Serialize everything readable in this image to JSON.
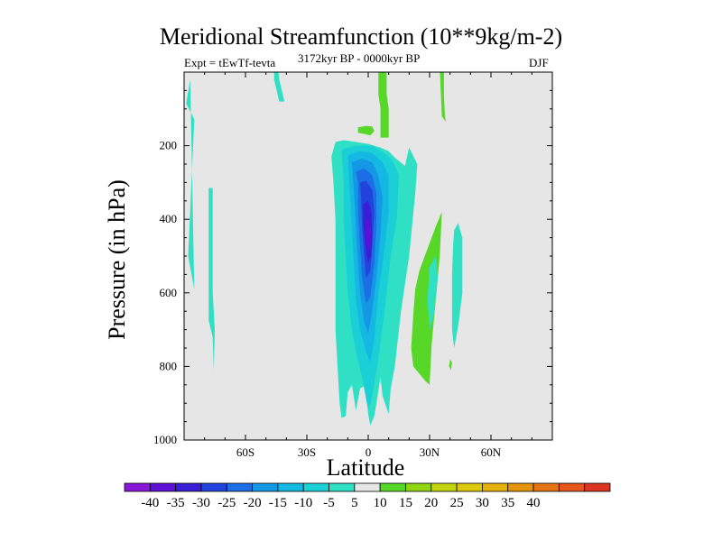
{
  "chart_data": {
    "type": "contour",
    "title": "Meridional Streamfunction (10**9kg/m-2)",
    "experiment": "Expt = tEwTf-tevta",
    "period": "3172kyr BP - 0000kyr BP",
    "season": "DJF",
    "xlabel": "Latitude",
    "ylabel": "Pressure (in hPa)",
    "x_ticks": [
      {
        "value": -60,
        "label": "60S"
      },
      {
        "value": -30,
        "label": "30S"
      },
      {
        "value": 0,
        "label": "0"
      },
      {
        "value": 30,
        "label": "30N"
      },
      {
        "value": 60,
        "label": "60N"
      }
    ],
    "y_ticks": [
      {
        "value": 200,
        "label": "200"
      },
      {
        "value": 400,
        "label": "400"
      },
      {
        "value": 600,
        "label": "600"
      },
      {
        "value": 800,
        "label": "800"
      },
      {
        "value": 1000,
        "label": "1000"
      }
    ],
    "xlim": [
      -90,
      90
    ],
    "ylim": [
      1000,
      0
    ],
    "background_color": "#e6e6e6",
    "colorbar": {
      "colors": [
        "#8a16d8",
        "#5e10d6",
        "#3a1ed6",
        "#2344dc",
        "#1c6ee4",
        "#1498e6",
        "#14b8e2",
        "#1ad0d6",
        "#2fe0c4",
        "#e6e6e6",
        "#57d828",
        "#90d414",
        "#c2d40c",
        "#dec80c",
        "#e4b00c",
        "#e4940c",
        "#e47414",
        "#e4561c",
        "#dc3420"
      ],
      "labels": [
        "-40",
        "-35",
        "-30",
        "-25",
        "-20",
        "-15",
        "-10",
        "-5",
        "5",
        "10",
        "15",
        "20",
        "25",
        "30",
        "35",
        "40"
      ]
    },
    "regions": [
      {
        "level": -5,
        "color": "#2fe0c4",
        "points": [
          [
            -87,
            20
          ],
          [
            -89,
            85
          ],
          [
            -85,
            128
          ],
          [
            -88,
            500
          ],
          [
            -85,
            590
          ]
        ]
      },
      {
        "level": -5,
        "color": "#2fe0c4",
        "points": [
          [
            -87,
            20
          ],
          [
            -87,
            145
          ]
        ]
      },
      {
        "level": -5,
        "color": "#2fe0c4",
        "points": [
          [
            -46,
            -6
          ],
          [
            -44,
            -6
          ],
          [
            -43.5,
            20
          ],
          [
            -42,
            55
          ],
          [
            -41,
            80
          ],
          [
            -43.5,
            80
          ],
          [
            -44.5,
            55
          ],
          [
            -46,
            20
          ]
        ]
      },
      {
        "level": -5,
        "color": "#2fe0c4",
        "points": [
          [
            -78,
            315
          ],
          [
            -76,
            315
          ],
          [
            -76,
            600
          ],
          [
            -75,
            700
          ],
          [
            -75.5,
            810
          ],
          [
            -76,
            720
          ],
          [
            -78,
            675
          ]
        ]
      },
      {
        "level": -5,
        "color": "#2fe0c4",
        "points": [
          [
            -18,
            230
          ],
          [
            -16,
            190
          ],
          [
            -12,
            185
          ],
          [
            -8,
            188
          ],
          [
            0,
            195
          ],
          [
            6,
            205
          ],
          [
            10,
            215
          ],
          [
            13,
            232
          ],
          [
            18,
            255
          ],
          [
            20,
            205
          ],
          [
            24,
            250
          ],
          [
            23,
            330
          ],
          [
            20,
            500
          ],
          [
            16,
            650
          ],
          [
            13,
            800
          ],
          [
            11,
            860
          ],
          [
            10,
            930
          ],
          [
            7,
            880
          ],
          [
            6,
            830
          ],
          [
            4,
            900
          ],
          [
            3,
            935
          ],
          [
            1,
            960
          ],
          [
            0,
            930
          ],
          [
            -1,
            850
          ],
          [
            -4,
            860
          ],
          [
            -6,
            920
          ],
          [
            -8,
            850
          ],
          [
            -10,
            870
          ],
          [
            -11,
            935
          ],
          [
            -13,
            940
          ],
          [
            -14,
            900
          ],
          [
            -15,
            800
          ],
          [
            -16,
            700
          ],
          [
            -16,
            500
          ],
          [
            -16,
            400
          ],
          [
            -17,
            300
          ]
        ]
      },
      {
        "level": -10,
        "color": "#1ad0d6",
        "points": [
          [
            -13,
            210
          ],
          [
            -6,
            200
          ],
          [
            2,
            200
          ],
          [
            8,
            220
          ],
          [
            12,
            240
          ],
          [
            15,
            280
          ],
          [
            14,
            400
          ],
          [
            11,
            500
          ],
          [
            8,
            650
          ],
          [
            5,
            780
          ],
          [
            2,
            880
          ],
          [
            0,
            920
          ],
          [
            -3,
            830
          ],
          [
            -6,
            760
          ],
          [
            -8,
            700
          ],
          [
            -10,
            600
          ],
          [
            -11,
            500
          ],
          [
            -12,
            400
          ],
          [
            -12,
            300
          ]
        ]
      },
      {
        "level": -15,
        "color": "#14b8e2",
        "points": [
          [
            -10,
            225
          ],
          [
            -4,
            215
          ],
          [
            2,
            220
          ],
          [
            7,
            245
          ],
          [
            10,
            280
          ],
          [
            10,
            380
          ],
          [
            8,
            480
          ],
          [
            5,
            600
          ],
          [
            3,
            720
          ],
          [
            1,
            790
          ],
          [
            -1,
            760
          ],
          [
            -4,
            700
          ],
          [
            -6,
            620
          ],
          [
            -7,
            520
          ],
          [
            -8,
            420
          ],
          [
            -9,
            320
          ]
        ]
      },
      {
        "level": -20,
        "color": "#1498e6",
        "points": [
          [
            -8,
            245
          ],
          [
            -3,
            235
          ],
          [
            2,
            245
          ],
          [
            5,
            280
          ],
          [
            7,
            340
          ],
          [
            6,
            440
          ],
          [
            4,
            560
          ],
          [
            2,
            650
          ],
          [
            0,
            710
          ],
          [
            -2,
            680
          ],
          [
            -4,
            600
          ],
          [
            -5,
            520
          ],
          [
            -6,
            420
          ],
          [
            -7,
            320
          ]
        ]
      },
      {
        "level": -25,
        "color": "#1c6ee4",
        "points": [
          [
            -6,
            270
          ],
          [
            -2,
            262
          ],
          [
            2,
            280
          ],
          [
            4,
            330
          ],
          [
            4,
            420
          ],
          [
            3,
            520
          ],
          [
            1,
            610
          ],
          [
            -1,
            630
          ],
          [
            -3,
            560
          ],
          [
            -4,
            470
          ],
          [
            -5,
            380
          ],
          [
            -5,
            300
          ]
        ]
      },
      {
        "level": -30,
        "color": "#2344dc",
        "points": [
          [
            -4,
            300
          ],
          [
            -1,
            295
          ],
          [
            2,
            320
          ],
          [
            3,
            380
          ],
          [
            2,
            470
          ],
          [
            1,
            540
          ],
          [
            -1,
            560
          ],
          [
            -2,
            500
          ],
          [
            -3,
            420
          ],
          [
            -3.5,
            340
          ]
        ]
      },
      {
        "level": -35,
        "color": "#3a1ed6",
        "points": [
          [
            -2.5,
            360
          ],
          [
            0,
            350
          ],
          [
            1.5,
            380
          ],
          [
            2,
            440
          ],
          [
            1.5,
            500
          ],
          [
            0,
            520
          ],
          [
            -1,
            490
          ],
          [
            -2,
            440
          ],
          [
            -2.5,
            400
          ]
        ]
      },
      {
        "level": -40,
        "color": "#5e10d6",
        "points": [
          [
            -1.5,
            410
          ],
          [
            0,
            400
          ],
          [
            1,
            420
          ],
          [
            1.2,
            460
          ],
          [
            0.5,
            485
          ],
          [
            -1,
            470
          ]
        ]
      },
      {
        "level": 5,
        "color": "#57d828",
        "points": [
          [
            5,
            -6
          ],
          [
            9,
            -6
          ],
          [
            9,
            60
          ],
          [
            10,
            100
          ],
          [
            10,
            178
          ],
          [
            6,
            178
          ],
          [
            6,
            100
          ],
          [
            5,
            60
          ]
        ]
      },
      {
        "level": 5,
        "color": "#57d828",
        "points": [
          [
            -5,
            150
          ],
          [
            -1,
            146
          ],
          [
            2,
            148
          ],
          [
            3,
            160
          ],
          [
            1,
            172
          ],
          [
            -2,
            168
          ],
          [
            -5,
            165
          ]
        ]
      },
      {
        "level": 5,
        "color": "#57d828",
        "points": [
          [
            35,
            -6
          ],
          [
            37,
            -6
          ],
          [
            37,
            60
          ],
          [
            37.5,
            120
          ],
          [
            38,
            135
          ],
          [
            36,
            120
          ],
          [
            35.5,
            60
          ]
        ]
      },
      {
        "level": 5,
        "color": "#57d828",
        "points": [
          [
            25,
            540
          ],
          [
            29,
            480
          ],
          [
            33,
            420
          ],
          [
            36,
            380
          ],
          [
            35,
            500
          ],
          [
            33,
            620
          ],
          [
            31,
            740
          ],
          [
            30,
            850
          ],
          [
            28,
            840
          ],
          [
            22,
            800
          ],
          [
            21,
            750
          ],
          [
            22,
            660
          ],
          [
            23,
            590
          ]
        ]
      },
      {
        "level": 5,
        "color": "#57d828",
        "points": [
          [
            40,
            780
          ],
          [
            41,
            790
          ],
          [
            40.5,
            810
          ],
          [
            39.5,
            800
          ]
        ]
      },
      {
        "level": -5,
        "color": "#2fe0c4",
        "points": [
          [
            42,
            430
          ],
          [
            44,
            410
          ],
          [
            46,
            450
          ],
          [
            46,
            600
          ],
          [
            44,
            690
          ],
          [
            42,
            750
          ],
          [
            41,
            700
          ],
          [
            41,
            550
          ],
          [
            41.5,
            470
          ]
        ]
      },
      {
        "level": -5,
        "color": "#2fe0c4",
        "points": [
          [
            30,
            530
          ],
          [
            33,
            500
          ],
          [
            34,
            560
          ],
          [
            32,
            660
          ],
          [
            30,
            700
          ],
          [
            29,
            620
          ]
        ]
      }
    ]
  }
}
